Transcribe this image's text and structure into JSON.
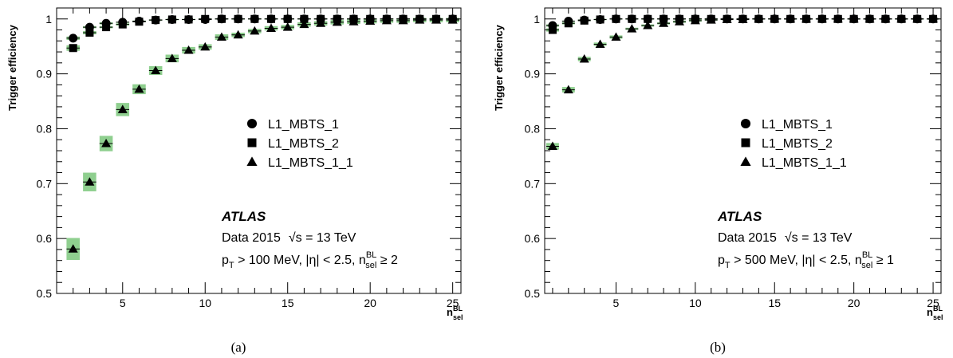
{
  "chart_data": [
    {
      "type": "scatter",
      "panel_label": "(a)",
      "ylabel": "Trigger efficiency",
      "xlabel_main": "n",
      "xlabel_sub": "sel",
      "xlabel_sup": "BL",
      "xlim": [
        1,
        25.5
      ],
      "ylim": [
        0.5,
        1.02
      ],
      "xticks": [
        5,
        10,
        15,
        20,
        25
      ],
      "yticks": [
        0.5,
        0.6,
        0.7,
        0.8,
        0.9,
        1
      ],
      "ytick_labels": [
        "0.5",
        "0.6",
        "0.7",
        "0.8",
        "0.9",
        "1"
      ],
      "systematic_band_color": "#8fcf8f",
      "legend_placement": "center-right",
      "series": [
        {
          "name": "L1_MBTS_1",
          "marker": "circle",
          "x": [
            2,
            3,
            4,
            5,
            6,
            7,
            8,
            9,
            10,
            11,
            12,
            13,
            14,
            15,
            16,
            17,
            18,
            19,
            20,
            21,
            22,
            23,
            24,
            25
          ],
          "y": [
            0.965,
            0.985,
            0.992,
            0.994,
            0.996,
            0.998,
            0.999,
            0.999,
            0.999,
            1,
            1,
            1,
            1,
            1,
            1,
            1,
            1,
            1,
            1,
            1,
            1,
            1,
            1,
            1
          ],
          "band": [
            0.003,
            0.002,
            0.002,
            0.001,
            0.001,
            0.001,
            0.001,
            0.001,
            0.001,
            0.001,
            0.001,
            0.001,
            0.001,
            0.001,
            0.001,
            0.001,
            0.001,
            0.001,
            0.001,
            0.001,
            0.001,
            0.001,
            0.001,
            0.001
          ]
        },
        {
          "name": "L1_MBTS_2",
          "marker": "square",
          "x": [
            2,
            3,
            4,
            5,
            6,
            7,
            8,
            9,
            10,
            11,
            12,
            13,
            14,
            15,
            16,
            17,
            18,
            19,
            20,
            21,
            22,
            23,
            24,
            25
          ],
          "y": [
            0.947,
            0.975,
            0.985,
            0.99,
            0.995,
            0.998,
            0.999,
            0.999,
            1,
            1,
            1,
            1,
            1,
            1,
            1,
            1,
            1,
            1,
            1,
            1,
            1,
            1,
            1,
            1
          ],
          "band": [
            0.005,
            0.003,
            0.002,
            0.002,
            0.001,
            0.001,
            0.001,
            0.001,
            0.001,
            0.001,
            0.001,
            0.001,
            0.001,
            0.001,
            0.001,
            0.001,
            0.001,
            0.001,
            0.001,
            0.001,
            0.001,
            0.001,
            0.001,
            0.001
          ]
        },
        {
          "name": "L1_MBTS_1_1",
          "marker": "triangle",
          "x": [
            2,
            3,
            4,
            5,
            6,
            7,
            8,
            9,
            10,
            11,
            12,
            13,
            14,
            15,
            16,
            17,
            18,
            19,
            20,
            21,
            22,
            23,
            24,
            25
          ],
          "y": [
            0.581,
            0.703,
            0.773,
            0.835,
            0.872,
            0.906,
            0.928,
            0.943,
            0.949,
            0.967,
            0.971,
            0.978,
            0.983,
            0.985,
            0.99,
            0.992,
            0.994,
            0.995,
            0.996,
            0.997,
            0.997,
            0.998,
            0.998,
            0.998
          ],
          "band": [
            0.02,
            0.017,
            0.014,
            0.012,
            0.009,
            0.008,
            0.007,
            0.006,
            0.005,
            0.005,
            0.004,
            0.004,
            0.004,
            0.004,
            0.004,
            0.004,
            0.004,
            0.004,
            0.004,
            0.004,
            0.004,
            0.004,
            0.004,
            0.004
          ]
        }
      ],
      "legend": [
        "L1_MBTS_1",
        "L1_MBTS_2",
        "L1_MBTS_1_1"
      ],
      "atlas_label": "ATLAS",
      "info_line1_prefix": "Data 2015",
      "info_line1_sqrt": "√s",
      "info_line1_suffix": " = 13 TeV",
      "info_line2_p": "p",
      "info_line2_T": "T",
      "info_line2_mid": " > 100 MeV, |η| < 2.5, n",
      "info_line2_sup": "BL",
      "info_line2_sub": "sel",
      "info_line2_end": " ≥ 2"
    },
    {
      "type": "scatter",
      "panel_label": "(b)",
      "ylabel": "Trigger efficiency",
      "xlabel_main": "n",
      "xlabel_sub": "sel",
      "xlabel_sup": "BL",
      "xlim": [
        0.5,
        25.5
      ],
      "ylim": [
        0.5,
        1.02
      ],
      "xticks": [
        5,
        10,
        15,
        20,
        25
      ],
      "yticks": [
        0.5,
        0.6,
        0.7,
        0.8,
        0.9,
        1
      ],
      "ytick_labels": [
        "0.5",
        "0.6",
        "0.7",
        "0.8",
        "0.9",
        "1"
      ],
      "systematic_band_color": "#8fcf8f",
      "legend_placement": "center-right",
      "series": [
        {
          "name": "L1_MBTS_1",
          "marker": "circle",
          "x": [
            1,
            2,
            3,
            4,
            5,
            6,
            7,
            8,
            9,
            10,
            11,
            12,
            13,
            14,
            15,
            16,
            17,
            18,
            19,
            20,
            21,
            22,
            23,
            24,
            25
          ],
          "y": [
            0.988,
            0.996,
            0.998,
            0.999,
            1,
            1,
            1,
            1,
            1,
            1,
            1,
            1,
            1,
            1,
            1,
            1,
            1,
            1,
            1,
            1,
            1,
            1,
            1,
            1,
            1
          ],
          "band": [
            0.002,
            0.001,
            0.001,
            0.001,
            0.001,
            0.001,
            0.001,
            0.001,
            0.001,
            0.001,
            0.001,
            0.001,
            0.001,
            0.001,
            0.001,
            0.001,
            0.001,
            0.001,
            0.001,
            0.001,
            0.001,
            0.001,
            0.001,
            0.001,
            0.001
          ]
        },
        {
          "name": "L1_MBTS_2",
          "marker": "square",
          "x": [
            1,
            2,
            3,
            4,
            5,
            6,
            7,
            8,
            9,
            10,
            11,
            12,
            13,
            14,
            15,
            16,
            17,
            18,
            19,
            20,
            21,
            22,
            23,
            24,
            25
          ],
          "y": [
            0.98,
            0.992,
            0.997,
            0.999,
            1,
            1,
            1,
            1,
            1,
            1,
            1,
            1,
            1,
            1,
            1,
            1,
            1,
            1,
            1,
            1,
            1,
            1,
            1,
            1,
            1
          ],
          "band": [
            0.003,
            0.002,
            0.001,
            0.001,
            0.001,
            0.001,
            0.001,
            0.001,
            0.001,
            0.001,
            0.001,
            0.001,
            0.001,
            0.001,
            0.001,
            0.001,
            0.001,
            0.001,
            0.001,
            0.001,
            0.001,
            0.001,
            0.001,
            0.001,
            0.001
          ]
        },
        {
          "name": "L1_MBTS_1_1",
          "marker": "triangle",
          "x": [
            1,
            2,
            3,
            4,
            5,
            6,
            7,
            8,
            9,
            10,
            11,
            12,
            13,
            14,
            15,
            16,
            17,
            18,
            19,
            20,
            21,
            22,
            23,
            24,
            25
          ],
          "y": [
            0.768,
            0.871,
            0.927,
            0.954,
            0.967,
            0.982,
            0.988,
            0.992,
            0.995,
            0.997,
            0.998,
            0.999,
            0.999,
            1,
            1,
            1,
            1,
            1,
            1,
            1,
            1,
            1,
            1,
            1,
            1
          ],
          "band": [
            0.006,
            0.005,
            0.004,
            0.003,
            0.003,
            0.002,
            0.002,
            0.002,
            0.002,
            0.002,
            0.001,
            0.001,
            0.001,
            0.001,
            0.001,
            0.001,
            0.001,
            0.001,
            0.001,
            0.001,
            0.001,
            0.001,
            0.001,
            0.001,
            0.001
          ]
        }
      ],
      "legend": [
        "L1_MBTS_1",
        "L1_MBTS_2",
        "L1_MBTS_1_1"
      ],
      "atlas_label": "ATLAS",
      "info_line1_prefix": "Data 2015",
      "info_line1_sqrt": "√s",
      "info_line1_suffix": " = 13 TeV",
      "info_line2_p": "p",
      "info_line2_T": "T",
      "info_line2_mid": " > 500 MeV, |η| < 2.5, n",
      "info_line2_sup": "BL",
      "info_line2_sub": "sel",
      "info_line2_end": " ≥ 1"
    }
  ]
}
